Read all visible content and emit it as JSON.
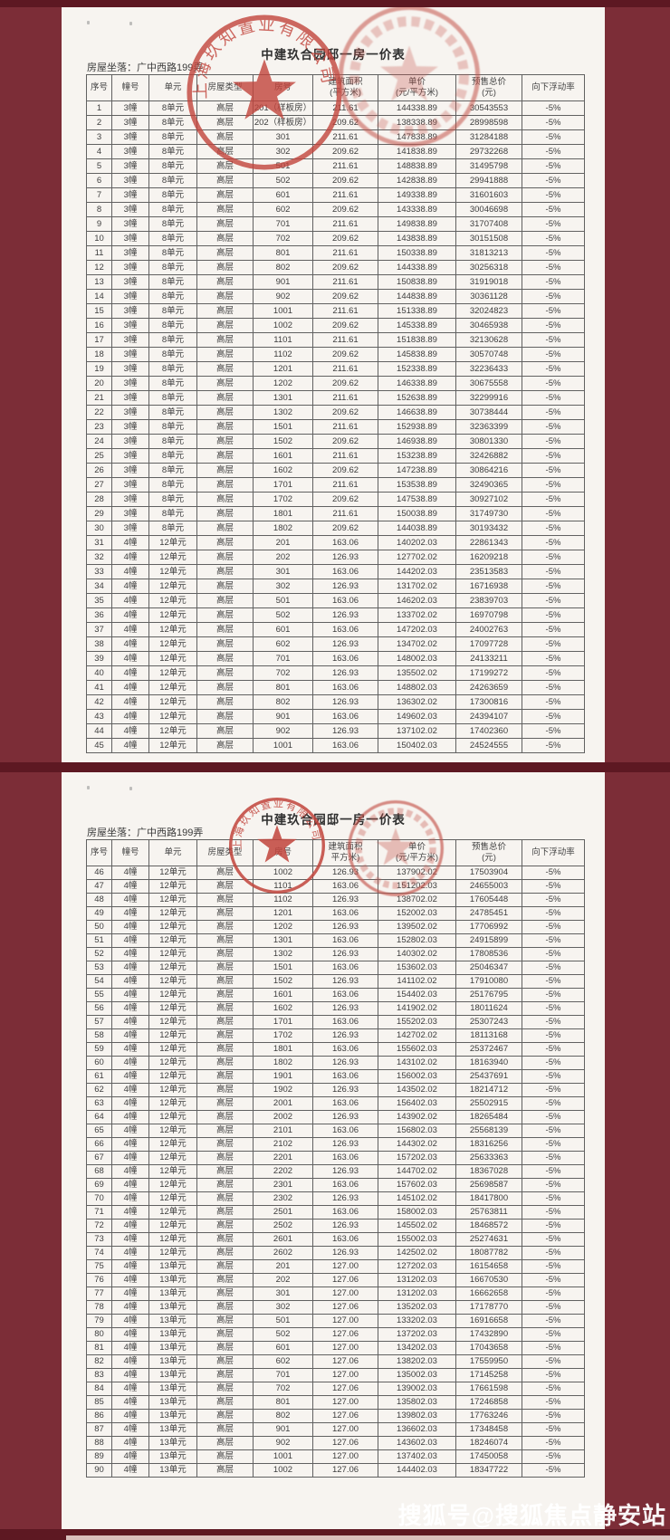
{
  "watermark": "搜狐号@搜狐焦点静安站",
  "stamps": {
    "company_seal_text": "上海玖知置业有限公司"
  },
  "pages": [
    {
      "title": "中建玖合园邸一房一价表",
      "location": "房屋坐落：广中西路199弄",
      "columns": [
        "序号",
        "幢号",
        "单元",
        "房屋类型",
        "房号",
        "建筑面积\n(平方米)",
        "单价\n(元/平方米)",
        "预售总价\n(元)",
        "向下浮动率"
      ],
      "rows": [
        [
          "1",
          "3幢",
          "8单元",
          "高层",
          "201（样板房）",
          "211.61",
          "144338.89",
          "30543553",
          "-5%"
        ],
        [
          "2",
          "3幢",
          "8单元",
          "高层",
          "202（样板房）",
          "209.62",
          "138338.89",
          "28998598",
          "-5%"
        ],
        [
          "3",
          "3幢",
          "8单元",
          "高层",
          "301",
          "211.61",
          "147838.89",
          "31284188",
          "-5%"
        ],
        [
          "4",
          "3幢",
          "8单元",
          "高层",
          "302",
          "209.62",
          "141838.89",
          "29732268",
          "-5%"
        ],
        [
          "5",
          "3幢",
          "8单元",
          "高层",
          "501",
          "211.61",
          "148838.89",
          "31495798",
          "-5%"
        ],
        [
          "6",
          "3幢",
          "8单元",
          "高层",
          "502",
          "209.62",
          "142838.89",
          "29941888",
          "-5%"
        ],
        [
          "7",
          "3幢",
          "8单元",
          "高层",
          "601",
          "211.61",
          "149338.89",
          "31601603",
          "-5%"
        ],
        [
          "8",
          "3幢",
          "8单元",
          "高层",
          "602",
          "209.62",
          "143338.89",
          "30046698",
          "-5%"
        ],
        [
          "9",
          "3幢",
          "8单元",
          "高层",
          "701",
          "211.61",
          "149838.89",
          "31707408",
          "-5%"
        ],
        [
          "10",
          "3幢",
          "8单元",
          "高层",
          "702",
          "209.62",
          "143838.89",
          "30151508",
          "-5%"
        ],
        [
          "11",
          "3幢",
          "8单元",
          "高层",
          "801",
          "211.61",
          "150338.89",
          "31813213",
          "-5%"
        ],
        [
          "12",
          "3幢",
          "8单元",
          "高层",
          "802",
          "209.62",
          "144338.89",
          "30256318",
          "-5%"
        ],
        [
          "13",
          "3幢",
          "8单元",
          "高层",
          "901",
          "211.61",
          "150838.89",
          "31919018",
          "-5%"
        ],
        [
          "14",
          "3幢",
          "8单元",
          "高层",
          "902",
          "209.62",
          "144838.89",
          "30361128",
          "-5%"
        ],
        [
          "15",
          "3幢",
          "8单元",
          "高层",
          "1001",
          "211.61",
          "151338.89",
          "32024823",
          "-5%"
        ],
        [
          "16",
          "3幢",
          "8单元",
          "高层",
          "1002",
          "209.62",
          "145338.89",
          "30465938",
          "-5%"
        ],
        [
          "17",
          "3幢",
          "8单元",
          "高层",
          "1101",
          "211.61",
          "151838.89",
          "32130628",
          "-5%"
        ],
        [
          "18",
          "3幢",
          "8单元",
          "高层",
          "1102",
          "209.62",
          "145838.89",
          "30570748",
          "-5%"
        ],
        [
          "19",
          "3幢",
          "8单元",
          "高层",
          "1201",
          "211.61",
          "152338.89",
          "32236433",
          "-5%"
        ],
        [
          "20",
          "3幢",
          "8单元",
          "高层",
          "1202",
          "209.62",
          "146338.89",
          "30675558",
          "-5%"
        ],
        [
          "21",
          "3幢",
          "8单元",
          "高层",
          "1301",
          "211.61",
          "152638.89",
          "32299916",
          "-5%"
        ],
        [
          "22",
          "3幢",
          "8单元",
          "高层",
          "1302",
          "209.62",
          "146638.89",
          "30738444",
          "-5%"
        ],
        [
          "23",
          "3幢",
          "8单元",
          "高层",
          "1501",
          "211.61",
          "152938.89",
          "32363399",
          "-5%"
        ],
        [
          "24",
          "3幢",
          "8单元",
          "高层",
          "1502",
          "209.62",
          "146938.89",
          "30801330",
          "-5%"
        ],
        [
          "25",
          "3幢",
          "8单元",
          "高层",
          "1601",
          "211.61",
          "153238.89",
          "32426882",
          "-5%"
        ],
        [
          "26",
          "3幢",
          "8单元",
          "高层",
          "1602",
          "209.62",
          "147238.89",
          "30864216",
          "-5%"
        ],
        [
          "27",
          "3幢",
          "8单元",
          "高层",
          "1701",
          "211.61",
          "153538.89",
          "32490365",
          "-5%"
        ],
        [
          "28",
          "3幢",
          "8单元",
          "高层",
          "1702",
          "209.62",
          "147538.89",
          "30927102",
          "-5%"
        ],
        [
          "29",
          "3幢",
          "8单元",
          "高层",
          "1801",
          "211.61",
          "150038.89",
          "31749730",
          "-5%"
        ],
        [
          "30",
          "3幢",
          "8单元",
          "高层",
          "1802",
          "209.62",
          "144038.89",
          "30193432",
          "-5%"
        ],
        [
          "31",
          "4幢",
          "12单元",
          "高层",
          "201",
          "163.06",
          "140202.03",
          "22861343",
          "-5%"
        ],
        [
          "32",
          "4幢",
          "12单元",
          "高层",
          "202",
          "126.93",
          "127702.02",
          "16209218",
          "-5%"
        ],
        [
          "33",
          "4幢",
          "12单元",
          "高层",
          "301",
          "163.06",
          "144202.03",
          "23513583",
          "-5%"
        ],
        [
          "34",
          "4幢",
          "12单元",
          "高层",
          "302",
          "126.93",
          "131702.02",
          "16716938",
          "-5%"
        ],
        [
          "35",
          "4幢",
          "12单元",
          "高层",
          "501",
          "163.06",
          "146202.03",
          "23839703",
          "-5%"
        ],
        [
          "36",
          "4幢",
          "12单元",
          "高层",
          "502",
          "126.93",
          "133702.02",
          "16970798",
          "-5%"
        ],
        [
          "37",
          "4幢",
          "12单元",
          "高层",
          "601",
          "163.06",
          "147202.03",
          "24002763",
          "-5%"
        ],
        [
          "38",
          "4幢",
          "12单元",
          "高层",
          "602",
          "126.93",
          "134702.02",
          "17097728",
          "-5%"
        ],
        [
          "39",
          "4幢",
          "12单元",
          "高层",
          "701",
          "163.06",
          "148002.03",
          "24133211",
          "-5%"
        ],
        [
          "40",
          "4幢",
          "12单元",
          "高层",
          "702",
          "126.93",
          "135502.02",
          "17199272",
          "-5%"
        ],
        [
          "41",
          "4幢",
          "12单元",
          "高层",
          "801",
          "163.06",
          "148802.03",
          "24263659",
          "-5%"
        ],
        [
          "42",
          "4幢",
          "12单元",
          "高层",
          "802",
          "126.93",
          "136302.02",
          "17300816",
          "-5%"
        ],
        [
          "43",
          "4幢",
          "12单元",
          "高层",
          "901",
          "163.06",
          "149602.03",
          "24394107",
          "-5%"
        ],
        [
          "44",
          "4幢",
          "12单元",
          "高层",
          "902",
          "126.93",
          "137102.02",
          "17402360",
          "-5%"
        ],
        [
          "45",
          "4幢",
          "12单元",
          "高层",
          "1001",
          "163.06",
          "150402.03",
          "24524555",
          "-5%"
        ]
      ]
    },
    {
      "title": "中建玖合园邸一房一价表",
      "location": "房屋坐落：广中西路199弄",
      "columns": [
        "序号",
        "幢号",
        "单元",
        "房屋类型",
        "房号",
        "建筑面积\n平方米)",
        "单价\n(元/平方米)",
        "预售总价\n(元)",
        "向下浮动率"
      ],
      "rows": [
        [
          "46",
          "4幢",
          "12单元",
          "高层",
          "1002",
          "126.93",
          "137902.02",
          "17503904",
          "-5%"
        ],
        [
          "47",
          "4幢",
          "12单元",
          "高层",
          "1101",
          "163.06",
          "151202.03",
          "24655003",
          "-5%"
        ],
        [
          "48",
          "4幢",
          "12单元",
          "高层",
          "1102",
          "126.93",
          "138702.02",
          "17605448",
          "-5%"
        ],
        [
          "49",
          "4幢",
          "12单元",
          "高层",
          "1201",
          "163.06",
          "152002.03",
          "24785451",
          "-5%"
        ],
        [
          "50",
          "4幢",
          "12单元",
          "高层",
          "1202",
          "126.93",
          "139502.02",
          "17706992",
          "-5%"
        ],
        [
          "51",
          "4幢",
          "12单元",
          "高层",
          "1301",
          "163.06",
          "152802.03",
          "24915899",
          "-5%"
        ],
        [
          "52",
          "4幢",
          "12单元",
          "高层",
          "1302",
          "126.93",
          "140302.02",
          "17808536",
          "-5%"
        ],
        [
          "53",
          "4幢",
          "12单元",
          "高层",
          "1501",
          "163.06",
          "153602.03",
          "25046347",
          "-5%"
        ],
        [
          "54",
          "4幢",
          "12单元",
          "高层",
          "1502",
          "126.93",
          "141102.02",
          "17910080",
          "-5%"
        ],
        [
          "55",
          "4幢",
          "12单元",
          "高层",
          "1601",
          "163.06",
          "154402.03",
          "25176795",
          "-5%"
        ],
        [
          "56",
          "4幢",
          "12单元",
          "高层",
          "1602",
          "126.93",
          "141902.02",
          "18011624",
          "-5%"
        ],
        [
          "57",
          "4幢",
          "12单元",
          "高层",
          "1701",
          "163.06",
          "155202.03",
          "25307243",
          "-5%"
        ],
        [
          "58",
          "4幢",
          "12单元",
          "高层",
          "1702",
          "126.93",
          "142702.02",
          "18113168",
          "-5%"
        ],
        [
          "59",
          "4幢",
          "12单元",
          "高层",
          "1801",
          "163.06",
          "155602.03",
          "25372467",
          "-5%"
        ],
        [
          "60",
          "4幢",
          "12单元",
          "高层",
          "1802",
          "126.93",
          "143102.02",
          "18163940",
          "-5%"
        ],
        [
          "61",
          "4幢",
          "12单元",
          "高层",
          "1901",
          "163.06",
          "156002.03",
          "25437691",
          "-5%"
        ],
        [
          "62",
          "4幢",
          "12单元",
          "高层",
          "1902",
          "126.93",
          "143502.02",
          "18214712",
          "-5%"
        ],
        [
          "63",
          "4幢",
          "12单元",
          "高层",
          "2001",
          "163.06",
          "156402.03",
          "25502915",
          "-5%"
        ],
        [
          "64",
          "4幢",
          "12单元",
          "高层",
          "2002",
          "126.93",
          "143902.02",
          "18265484",
          "-5%"
        ],
        [
          "65",
          "4幢",
          "12单元",
          "高层",
          "2101",
          "163.06",
          "156802.03",
          "25568139",
          "-5%"
        ],
        [
          "66",
          "4幢",
          "12单元",
          "高层",
          "2102",
          "126.93",
          "144302.02",
          "18316256",
          "-5%"
        ],
        [
          "67",
          "4幢",
          "12单元",
          "高层",
          "2201",
          "163.06",
          "157202.03",
          "25633363",
          "-5%"
        ],
        [
          "68",
          "4幢",
          "12单元",
          "高层",
          "2202",
          "126.93",
          "144702.02",
          "18367028",
          "-5%"
        ],
        [
          "69",
          "4幢",
          "12单元",
          "高层",
          "2301",
          "163.06",
          "157602.03",
          "25698587",
          "-5%"
        ],
        [
          "70",
          "4幢",
          "12单元",
          "高层",
          "2302",
          "126.93",
          "145102.02",
          "18417800",
          "-5%"
        ],
        [
          "71",
          "4幢",
          "12单元",
          "高层",
          "2501",
          "163.06",
          "158002.03",
          "25763811",
          "-5%"
        ],
        [
          "72",
          "4幢",
          "12单元",
          "高层",
          "2502",
          "126.93",
          "145502.02",
          "18468572",
          "-5%"
        ],
        [
          "73",
          "4幢",
          "12单元",
          "高层",
          "2601",
          "163.06",
          "155002.03",
          "25274631",
          "-5%"
        ],
        [
          "74",
          "4幢",
          "12单元",
          "高层",
          "2602",
          "126.93",
          "142502.02",
          "18087782",
          "-5%"
        ],
        [
          "75",
          "4幢",
          "13单元",
          "高层",
          "201",
          "127.00",
          "127202.03",
          "16154658",
          "-5%"
        ],
        [
          "76",
          "4幢",
          "13单元",
          "高层",
          "202",
          "127.06",
          "131202.03",
          "16670530",
          "-5%"
        ],
        [
          "77",
          "4幢",
          "13单元",
          "高层",
          "301",
          "127.00",
          "131202.03",
          "16662658",
          "-5%"
        ],
        [
          "78",
          "4幢",
          "13单元",
          "高层",
          "302",
          "127.06",
          "135202.03",
          "17178770",
          "-5%"
        ],
        [
          "79",
          "4幢",
          "13单元",
          "高层",
          "501",
          "127.00",
          "133202.03",
          "16916658",
          "-5%"
        ],
        [
          "80",
          "4幢",
          "13单元",
          "高层",
          "502",
          "127.06",
          "137202.03",
          "17432890",
          "-5%"
        ],
        [
          "81",
          "4幢",
          "13单元",
          "高层",
          "601",
          "127.00",
          "134202.03",
          "17043658",
          "-5%"
        ],
        [
          "82",
          "4幢",
          "13单元",
          "高层",
          "602",
          "127.06",
          "138202.03",
          "17559950",
          "-5%"
        ],
        [
          "83",
          "4幢",
          "13单元",
          "高层",
          "701",
          "127.00",
          "135002.03",
          "17145258",
          "-5%"
        ],
        [
          "84",
          "4幢",
          "13单元",
          "高层",
          "702",
          "127.06",
          "139002.03",
          "17661598",
          "-5%"
        ],
        [
          "85",
          "4幢",
          "13单元",
          "高层",
          "801",
          "127.00",
          "135802.03",
          "17246858",
          "-5%"
        ],
        [
          "86",
          "4幢",
          "13单元",
          "高层",
          "802",
          "127.06",
          "139802.03",
          "17763246",
          "-5%"
        ],
        [
          "87",
          "4幢",
          "13单元",
          "高层",
          "901",
          "127.00",
          "136602.03",
          "17348458",
          "-5%"
        ],
        [
          "88",
          "4幢",
          "13单元",
          "高层",
          "902",
          "127.06",
          "143602.03",
          "18246074",
          "-5%"
        ],
        [
          "89",
          "4幢",
          "13单元",
          "高层",
          "1001",
          "127.00",
          "137402.03",
          "17450058",
          "-5%"
        ],
        [
          "90",
          "4幢",
          "13单元",
          "高层",
          "1002",
          "127.06",
          "144402.03",
          "18347722",
          "-5%"
        ]
      ]
    }
  ]
}
